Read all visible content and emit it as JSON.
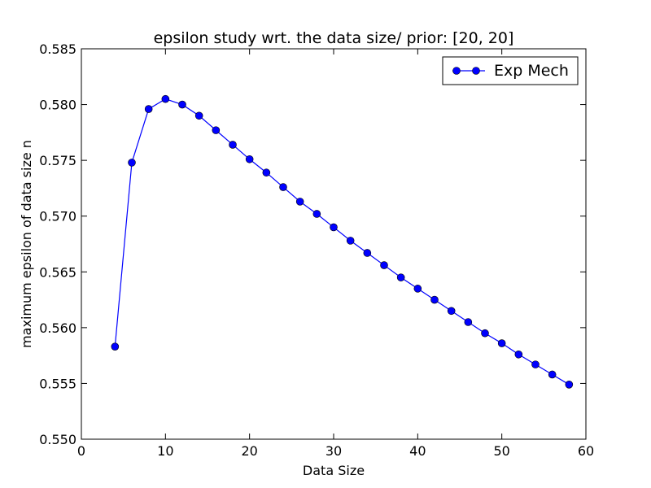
{
  "chart_data": {
    "type": "line",
    "title": "epsilon study wrt. the data size/ prior: [20, 20]",
    "xlabel": "Data Size",
    "ylabel": "maximum epsilon of data size n",
    "xlim": [
      0,
      60
    ],
    "ylim": [
      0.55,
      0.585
    ],
    "xticks": [
      "0",
      "10",
      "20",
      "30",
      "40",
      "50",
      "60"
    ],
    "yticks": [
      "0.550",
      "0.555",
      "0.560",
      "0.565",
      "0.570",
      "0.575",
      "0.580",
      "0.585"
    ],
    "grid": false,
    "legend_position": "top-right",
    "series": [
      {
        "name": "Exp Mech",
        "color": "#0000ff",
        "marker": "circle",
        "x": [
          4,
          6,
          8,
          10,
          12,
          14,
          16,
          18,
          20,
          22,
          24,
          26,
          28,
          30,
          32,
          34,
          36,
          38,
          40,
          42,
          44,
          46,
          48,
          50,
          52,
          54,
          56,
          58
        ],
        "y": [
          0.5583,
          0.5748,
          0.5796,
          0.5805,
          0.58,
          0.579,
          0.5777,
          0.5764,
          0.5751,
          0.5739,
          0.5726,
          0.5713,
          0.5702,
          0.569,
          0.5678,
          0.5667,
          0.5656,
          0.5645,
          0.5635,
          0.5625,
          0.5615,
          0.5605,
          0.5595,
          0.5586,
          0.5576,
          0.5567,
          0.5558,
          0.5549
        ]
      }
    ]
  }
}
